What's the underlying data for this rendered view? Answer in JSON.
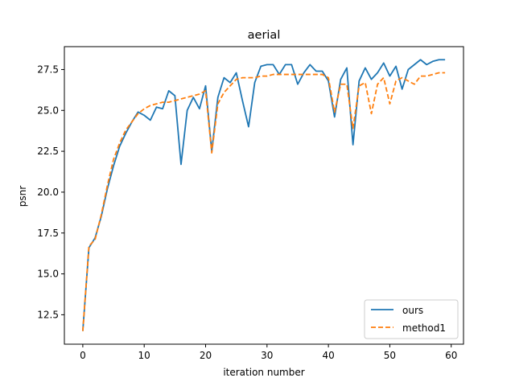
{
  "chart_data": {
    "type": "line",
    "title": "aerial",
    "xlabel": "iteration number",
    "ylabel": "psnr",
    "xlim": [
      -3,
      62
    ],
    "ylim": [
      10.7,
      28.9
    ],
    "x_ticks": [
      0,
      10,
      20,
      30,
      40,
      50,
      60
    ],
    "y_ticks": [
      12.5,
      15.0,
      17.5,
      20.0,
      22.5,
      25.0,
      27.5
    ],
    "grid": false,
    "legend_position": "lower-right",
    "x": [
      0,
      1,
      2,
      3,
      4,
      5,
      6,
      7,
      8,
      9,
      10,
      11,
      12,
      13,
      14,
      15,
      16,
      17,
      18,
      19,
      20,
      21,
      22,
      23,
      24,
      25,
      26,
      27,
      28,
      29,
      30,
      31,
      32,
      33,
      34,
      35,
      36,
      37,
      38,
      39,
      40,
      41,
      42,
      43,
      44,
      45,
      46,
      47,
      48,
      49,
      50,
      51,
      52,
      53,
      54,
      55,
      56,
      57,
      58,
      59
    ],
    "series": [
      {
        "name": "ours",
        "color": "#1f77b4",
        "dash": "solid",
        "values": [
          11.5,
          16.6,
          17.2,
          18.5,
          20.2,
          21.6,
          22.8,
          23.6,
          24.3,
          24.9,
          24.7,
          24.4,
          25.2,
          25.1,
          26.2,
          25.9,
          21.7,
          25.0,
          25.8,
          25.1,
          26.5,
          22.5,
          25.8,
          27.0,
          26.7,
          27.3,
          25.6,
          24.0,
          26.7,
          27.7,
          27.8,
          27.8,
          27.2,
          27.8,
          27.8,
          26.6,
          27.3,
          27.8,
          27.4,
          27.4,
          26.8,
          24.6,
          26.9,
          27.6,
          22.9,
          26.8,
          27.6,
          26.9,
          27.3,
          27.9,
          27.1,
          27.7,
          26.3,
          27.5,
          27.8,
          28.1,
          27.8,
          28.0,
          28.1,
          28.1
        ]
      },
      {
        "name": "method1",
        "color": "#ff7f0e",
        "dash": "dashed",
        "values": [
          11.5,
          16.7,
          17.1,
          18.6,
          20.4,
          22.0,
          23.0,
          23.8,
          24.3,
          24.8,
          25.1,
          25.3,
          25.4,
          25.5,
          25.5,
          25.6,
          25.7,
          25.8,
          25.9,
          26.0,
          26.2,
          22.4,
          25.4,
          26.1,
          26.5,
          26.9,
          27.0,
          27.0,
          27.0,
          27.1,
          27.1,
          27.2,
          27.2,
          27.2,
          27.2,
          27.2,
          27.2,
          27.2,
          27.2,
          27.2,
          27.0,
          24.9,
          26.6,
          26.6,
          23.9,
          26.5,
          26.7,
          24.8,
          26.6,
          27.0,
          25.4,
          26.8,
          27.0,
          26.8,
          26.6,
          27.1,
          27.1,
          27.2,
          27.3,
          27.3
        ]
      }
    ]
  }
}
